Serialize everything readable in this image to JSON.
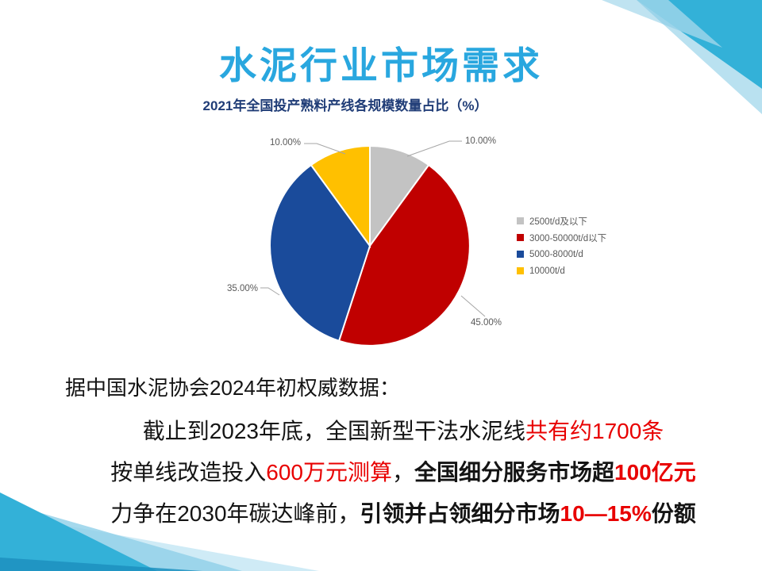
{
  "slide": {
    "title": "水泥行业市场需求",
    "title_color": "#29A7DF"
  },
  "chart_data": {
    "type": "pie",
    "title": "2021年全国投产熟料产线各规模数量占比（%）",
    "title_color": "#203D77",
    "categories": [
      "2500t/d及以下",
      "3000-50000t/d以下",
      "5000-8000t/d",
      "10000t/d"
    ],
    "values": [
      10,
      45,
      35,
      10
    ],
    "unit": "%",
    "data_labels": [
      "10.00%",
      "45.00%",
      "35.00%",
      "10.00%"
    ],
    "colors": [
      "#C3C3C3",
      "#C00000",
      "#1A4B9B",
      "#FFC000"
    ],
    "legend_position": "right",
    "label_color": "#595959",
    "start_angle_deg_from_top": 0,
    "direction": "clockwise"
  },
  "body": {
    "accent_red": "#E80000",
    "line1": "据中国水泥协会2024年初权威数据：",
    "line2": {
      "segments": [
        {
          "text": "截止到2023年底，全国新型干法水泥线"
        },
        {
          "text": "共有约1700条"
        }
      ]
    },
    "line3": {
      "segments": [
        {
          "text": "按单线改造投入"
        },
        {
          "text": "600万元测算"
        },
        {
          "text": "，"
        },
        {
          "text": "全国细分服务市场超"
        },
        {
          "text": "100亿元"
        }
      ]
    },
    "line4": {
      "segments": [
        {
          "text": "力争在2030年碳达峰前，"
        },
        {
          "text": "引领并占领细分市场"
        },
        {
          "text": "10—15%"
        },
        {
          "text": "份额"
        }
      ]
    }
  },
  "decor": {
    "triangle_main": "#33B1D8",
    "triangle_light": "#7FC9E4",
    "triangle_pale": "#A9DAEC",
    "triangle_dark": "#1D90C0"
  }
}
